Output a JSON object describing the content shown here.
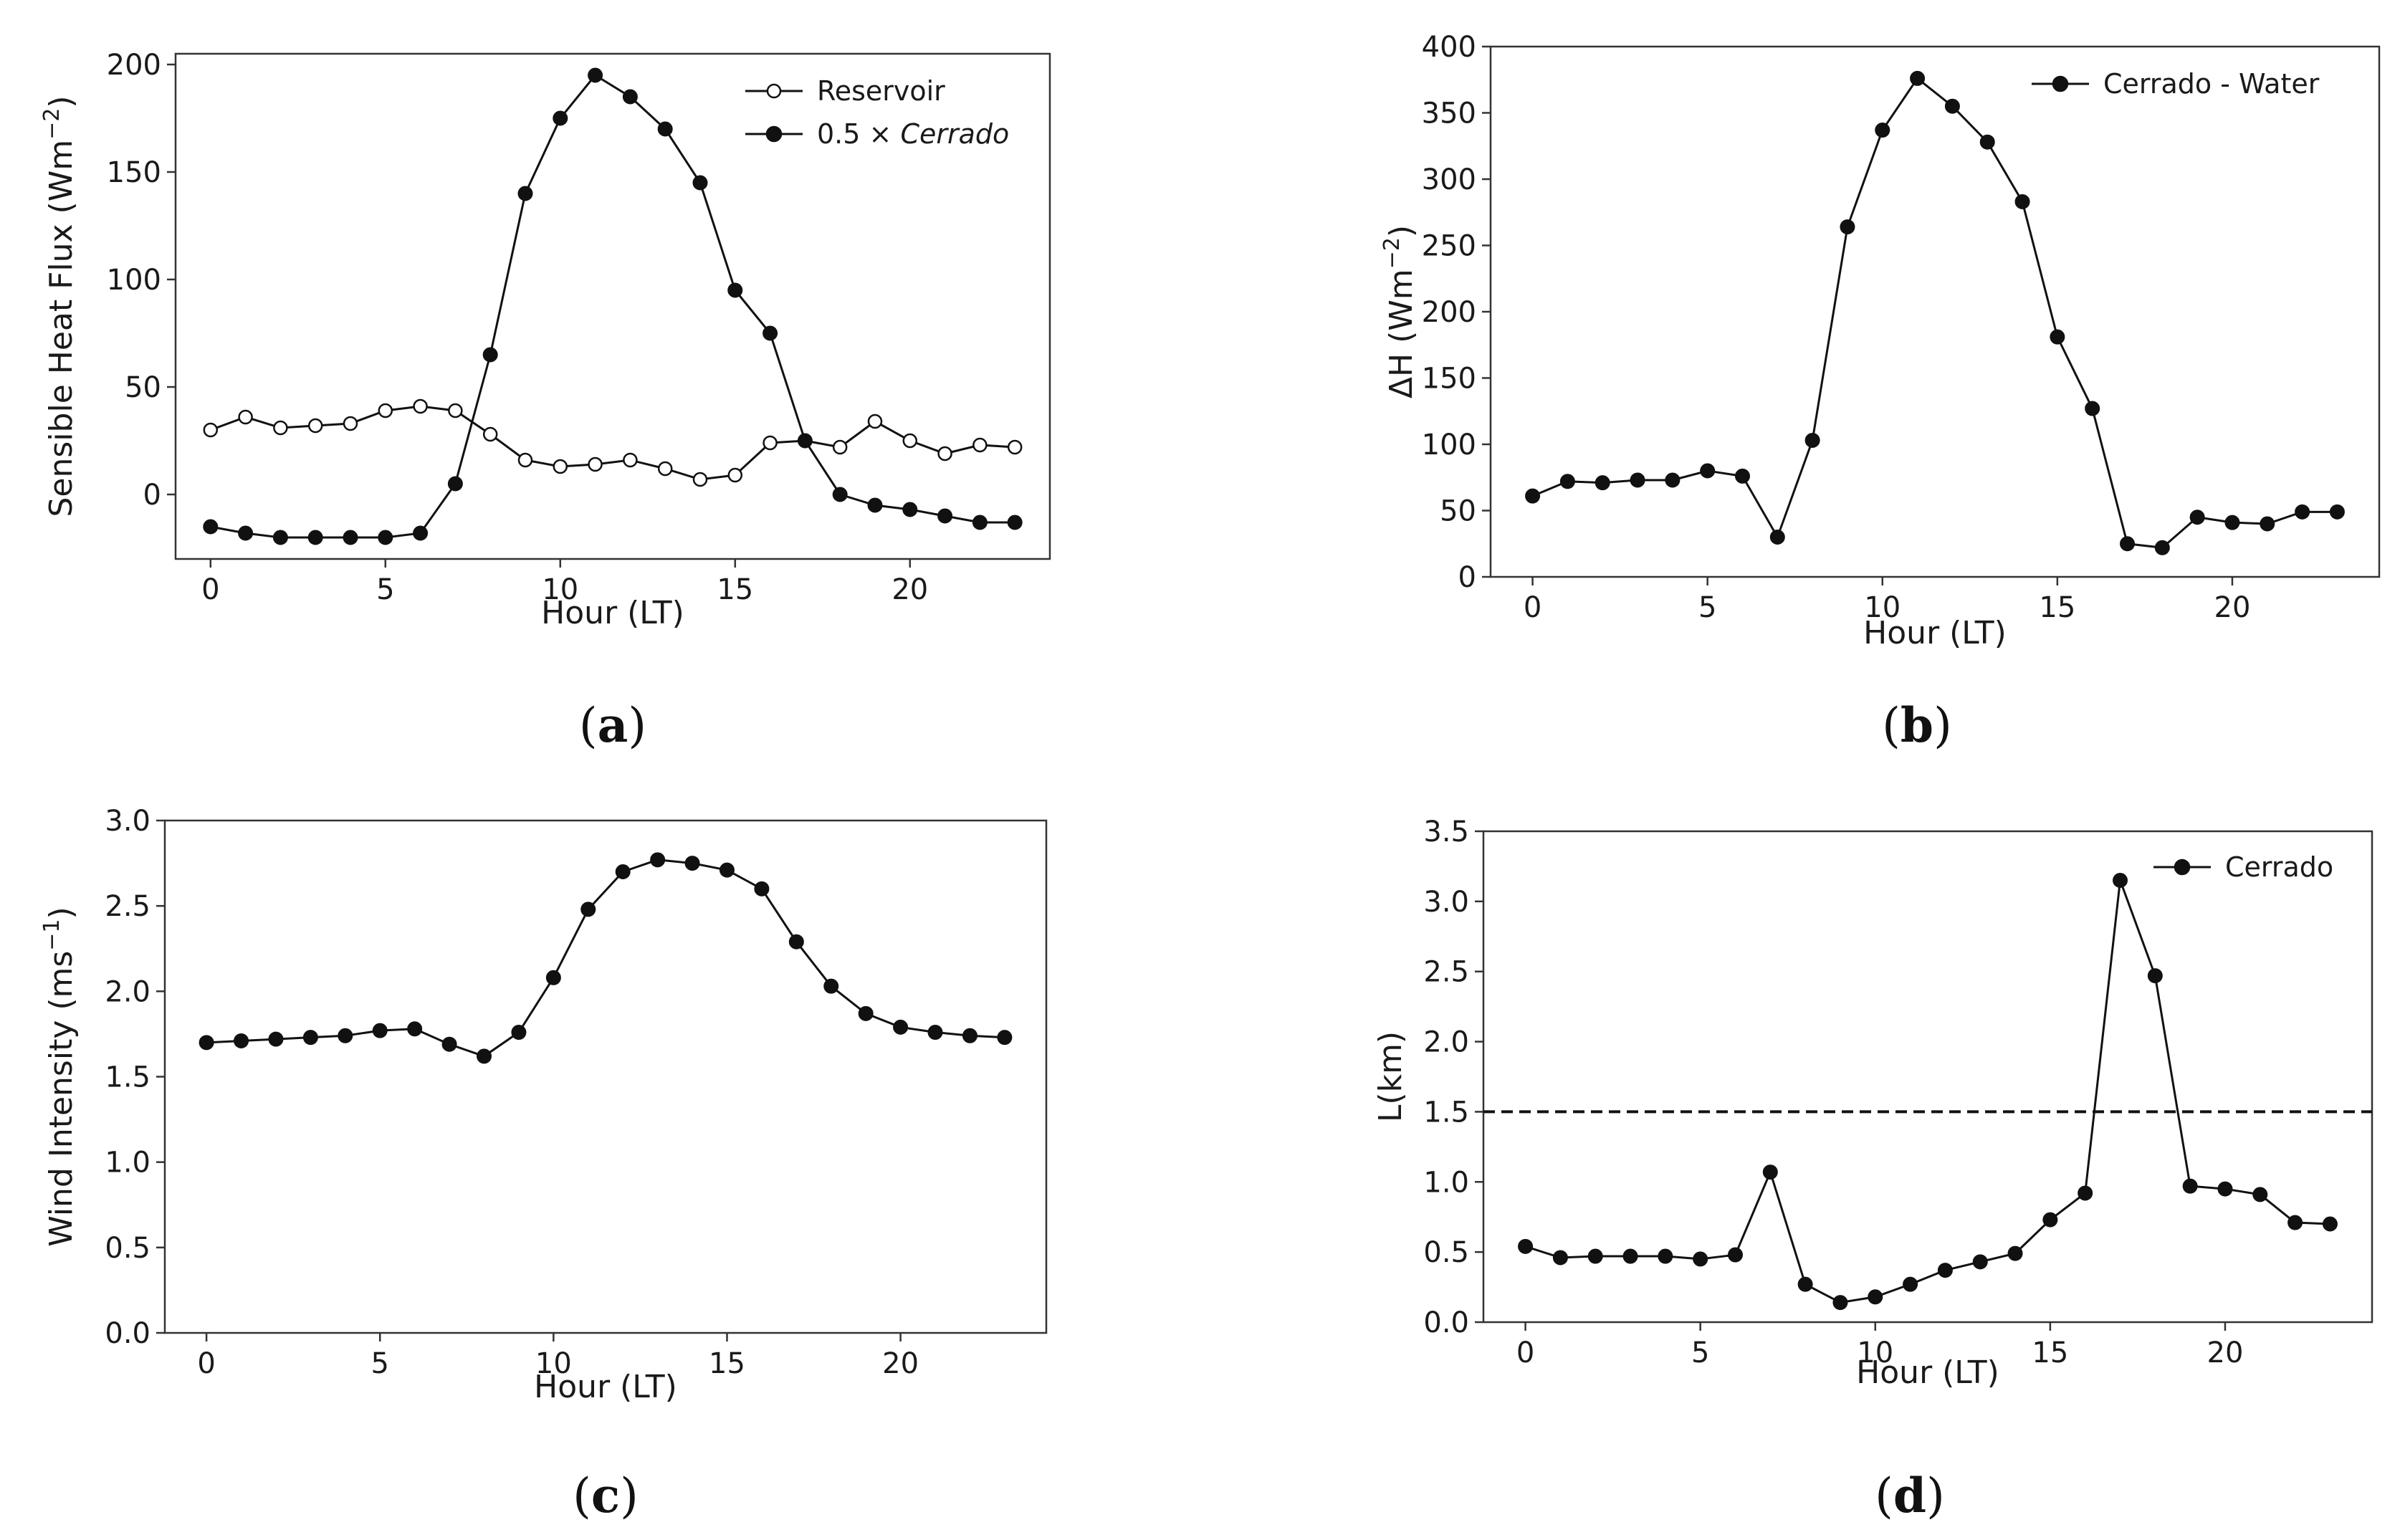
{
  "chart_data": [
    {
      "id": "a",
      "type": "line",
      "caption": "a",
      "title": "",
      "xlabel": "Hour (LT)",
      "ylabel": "Sensible Heat Flux (Wm",
      "ylabel_sup": "−2",
      "ylabel_close": ")",
      "xlim": [
        -1,
        24
      ],
      "ylim": [
        -30,
        205
      ],
      "xticks": [
        0,
        5,
        10,
        15,
        20
      ],
      "yticks": [
        0,
        50,
        100,
        150,
        200
      ],
      "grid": false,
      "legend_position": "top-right",
      "x": [
        0,
        1,
        2,
        3,
        4,
        5,
        6,
        7,
        8,
        9,
        10,
        11,
        12,
        13,
        14,
        15,
        16,
        17,
        18,
        19,
        20,
        21,
        22,
        23
      ],
      "series": [
        {
          "name": "Reservoir",
          "name_prefix": "Reservoir",
          "name_italic": "",
          "marker": "open",
          "values": [
            30,
            36,
            31,
            32,
            33,
            39,
            41,
            39,
            28,
            16,
            13,
            14,
            16,
            12,
            7,
            9,
            24,
            25,
            22,
            34,
            25,
            19,
            23,
            22
          ]
        },
        {
          "name": "0.5 × Cerrado",
          "name_prefix": "0.5 × ",
          "name_italic": "Cerrado",
          "marker": "filled",
          "values": [
            -15,
            -18,
            -20,
            -20,
            -20,
            -20,
            -18,
            5,
            65,
            140,
            175,
            195,
            185,
            170,
            145,
            95,
            75,
            25,
            0,
            -5,
            -7,
            -10,
            -13,
            -13
          ]
        }
      ]
    },
    {
      "id": "b",
      "type": "line",
      "caption": "b",
      "title": "",
      "xlabel": "Hour (LT)",
      "ylabel": "ΔH (Wm",
      "ylabel_sup": "−2",
      "ylabel_close": ")",
      "xlim": [
        -1.2,
        24.2
      ],
      "ylim": [
        0,
        400
      ],
      "xticks": [
        0,
        5,
        10,
        15,
        20
      ],
      "yticks": [
        0,
        50,
        100,
        150,
        200,
        250,
        300,
        350,
        400
      ],
      "grid": false,
      "legend_position": "top-right",
      "x": [
        0,
        1,
        2,
        3,
        4,
        5,
        6,
        7,
        8,
        9,
        10,
        11,
        12,
        13,
        14,
        15,
        16,
        17,
        18,
        19,
        20,
        21,
        22,
        23
      ],
      "series": [
        {
          "name": "Cerrado - Water",
          "name_prefix": "Cerrado - Water",
          "name_italic": "",
          "marker": "filled",
          "values": [
            61,
            72,
            71,
            73,
            73,
            80,
            76,
            30,
            103,
            264,
            337,
            376,
            355,
            328,
            283,
            181,
            127,
            25,
            22,
            45,
            41,
            40,
            49,
            49
          ]
        }
      ]
    },
    {
      "id": "c",
      "type": "line",
      "caption": "c",
      "title": "",
      "xlabel": "Hour (LT)",
      "ylabel": "Wind Intensity (ms",
      "ylabel_sup": "−1",
      "ylabel_close": ")",
      "xlim": [
        -1.2,
        24.2
      ],
      "ylim": [
        0,
        3.0
      ],
      "xticks": [
        0,
        5,
        10,
        15,
        20
      ],
      "yticks": [
        0.0,
        0.5,
        1.0,
        1.5,
        2.0,
        2.5,
        3.0
      ],
      "grid": false,
      "legend_position": "none",
      "x": [
        0,
        1,
        2,
        3,
        4,
        5,
        6,
        7,
        8,
        9,
        10,
        11,
        12,
        13,
        14,
        15,
        16,
        17,
        18,
        19,
        20,
        21,
        22,
        23
      ],
      "series": [
        {
          "name": "Wind Intensity",
          "marker": "filled",
          "values": [
            1.7,
            1.71,
            1.72,
            1.73,
            1.74,
            1.77,
            1.78,
            1.69,
            1.62,
            1.76,
            2.08,
            2.48,
            2.7,
            2.77,
            2.75,
            2.71,
            2.6,
            2.29,
            2.03,
            1.87,
            1.79,
            1.76,
            1.74,
            1.73
          ]
        }
      ]
    },
    {
      "id": "d",
      "type": "line",
      "caption": "d",
      "title": "",
      "xlabel": "Hour (LT)",
      "ylabel": "L(km)",
      "ylabel_sup": "",
      "ylabel_close": "",
      "xlim": [
        -1.2,
        24.2
      ],
      "ylim": [
        0,
        3.5
      ],
      "xticks": [
        0,
        5,
        10,
        15,
        20
      ],
      "yticks": [
        0.0,
        0.5,
        1.0,
        1.5,
        2.0,
        2.5,
        3.0,
        3.5
      ],
      "grid": false,
      "legend_position": "top-right",
      "reference_line_y": 1.5,
      "x": [
        0,
        1,
        2,
        3,
        4,
        5,
        6,
        7,
        8,
        9,
        10,
        11,
        12,
        13,
        14,
        15,
        16,
        17,
        18,
        19,
        20,
        21,
        22,
        23
      ],
      "series": [
        {
          "name": "Cerrado",
          "name_prefix": "Cerrado",
          "name_italic": "",
          "marker": "filled",
          "values": [
            0.54,
            0.46,
            0.47,
            0.47,
            0.47,
            0.45,
            0.48,
            1.07,
            0.27,
            0.14,
            0.18,
            0.27,
            0.37,
            0.43,
            0.49,
            0.73,
            0.92,
            3.15,
            2.47,
            0.97,
            0.95,
            0.91,
            0.71,
            0.7
          ]
        }
      ]
    }
  ]
}
